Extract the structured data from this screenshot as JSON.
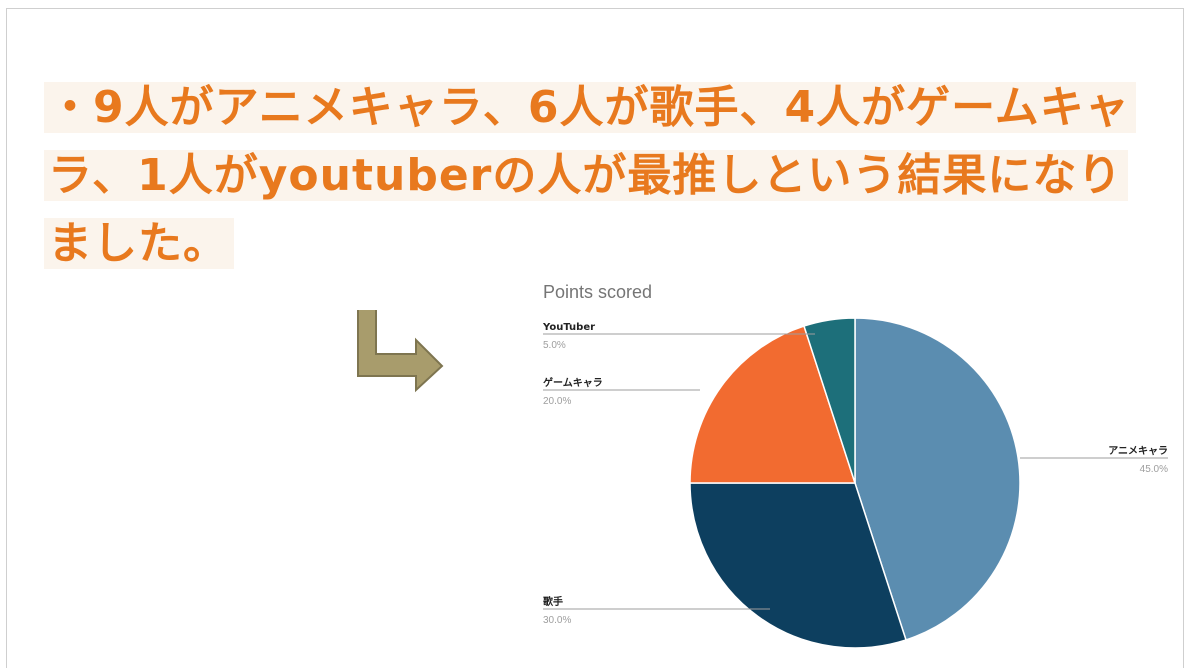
{
  "slide": {
    "headline": "・9人がアニメキャラ、6人が歌手、4人がゲームキャラ、1人がyoutuberの人が最推しという結果になりました。"
  },
  "arrow": {
    "icon": "bent-arrow-icon",
    "color": "#a89c6c"
  },
  "chart_data": {
    "type": "pie",
    "title": "Points scored",
    "slices": [
      {
        "label": "アニメキャラ",
        "value": 45.0,
        "pct_label": "45.0%",
        "color": "#5b8db0"
      },
      {
        "label": "歌手",
        "value": 30.0,
        "pct_label": "30.0%",
        "color": "#0d3f5f"
      },
      {
        "label": "ゲームキャラ",
        "value": 20.0,
        "pct_label": "20.0%",
        "color": "#f26b30"
      },
      {
        "label": "YouTuber",
        "value": 5.0,
        "pct_label": "5.0%",
        "color": "#1d6f7a"
      }
    ]
  }
}
